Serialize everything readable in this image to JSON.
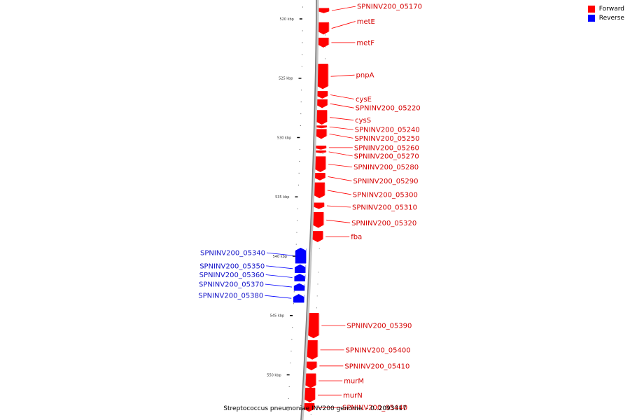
{
  "legend": {
    "forward_label": "Forward",
    "reverse_label": "Reverse",
    "forward_color": "#ff0000",
    "reverse_color": "#0000ff"
  },
  "caption": "Streptococcus pneumoniae INV200 genome. - 0..2093317",
  "chart_data": {
    "type": "genome-map",
    "view_range_kbp": [
      518.5,
      553.5
    ],
    "tick_labels": [
      "520 kbp",
      "525 kbp",
      "530 kbp",
      "535 kbp",
      "540 kbp",
      "545 kbp",
      "550 kbp"
    ],
    "genes": [
      {
        "name": "SPNINV200_05170",
        "strand": "forward",
        "start_kbp": 519.1,
        "end_kbp": 519.5
      },
      {
        "name": "metE",
        "strand": "forward",
        "start_kbp": 520.3,
        "end_kbp": 521.3
      },
      {
        "name": "metF",
        "strand": "forward",
        "start_kbp": 521.6,
        "end_kbp": 522.4
      },
      {
        "name": "pnpA",
        "strand": "forward",
        "start_kbp": 523.8,
        "end_kbp": 525.9
      },
      {
        "name": "cysE",
        "strand": "forward",
        "start_kbp": 526.1,
        "end_kbp": 526.7
      },
      {
        "name": "SPNINV200_05220",
        "strand": "forward",
        "start_kbp": 526.8,
        "end_kbp": 527.5
      },
      {
        "name": "cysS",
        "strand": "forward",
        "start_kbp": 527.7,
        "end_kbp": 528.9
      },
      {
        "name": "SPNINV200_05240",
        "strand": "forward",
        "start_kbp": 529.0,
        "end_kbp": 529.2
      },
      {
        "name": "SPNINV200_05250",
        "strand": "forward",
        "start_kbp": 529.3,
        "end_kbp": 530.1
      },
      {
        "name": "SPNINV200_05260",
        "strand": "forward",
        "start_kbp": 530.7,
        "end_kbp": 531.0
      },
      {
        "name": "SPNINV200_05270",
        "strand": "forward",
        "start_kbp": 531.1,
        "end_kbp": 531.3
      },
      {
        "name": "SPNINV200_05280",
        "strand": "forward",
        "start_kbp": 531.6,
        "end_kbp": 532.9
      },
      {
        "name": "SPNINV200_05290",
        "strand": "forward",
        "start_kbp": 533.0,
        "end_kbp": 533.6
      },
      {
        "name": "SPNINV200_05300",
        "strand": "forward",
        "start_kbp": 533.8,
        "end_kbp": 535.1
      },
      {
        "name": "SPNINV200_05310",
        "strand": "forward",
        "start_kbp": 535.5,
        "end_kbp": 536.0
      },
      {
        "name": "SPNINV200_05320",
        "strand": "forward",
        "start_kbp": 536.3,
        "end_kbp": 537.6
      },
      {
        "name": "fba",
        "strand": "forward",
        "start_kbp": 537.9,
        "end_kbp": 538.8
      },
      {
        "name": "SPNINV200_05340",
        "strand": "reverse",
        "start_kbp": 539.3,
        "end_kbp": 540.6
      },
      {
        "name": "SPNINV200_05350",
        "strand": "reverse",
        "start_kbp": 540.7,
        "end_kbp": 541.4
      },
      {
        "name": "SPNINV200_05360",
        "strand": "reverse",
        "start_kbp": 541.5,
        "end_kbp": 542.1
      },
      {
        "name": "SPNINV200_05370",
        "strand": "reverse",
        "start_kbp": 542.3,
        "end_kbp": 542.9
      },
      {
        "name": "SPNINV200_05380",
        "strand": "reverse",
        "start_kbp": 543.2,
        "end_kbp": 543.9
      },
      {
        "name": "SPNINV200_05390",
        "strand": "forward",
        "start_kbp": 544.8,
        "end_kbp": 546.9
      },
      {
        "name": "SPNINV200_05400",
        "strand": "forward",
        "start_kbp": 547.1,
        "end_kbp": 548.7
      },
      {
        "name": "SPNINV200_05410",
        "strand": "forward",
        "start_kbp": 548.9,
        "end_kbp": 549.6
      },
      {
        "name": "murM",
        "strand": "forward",
        "start_kbp": 549.9,
        "end_kbp": 551.1
      },
      {
        "name": "murN",
        "strand": "forward",
        "start_kbp": 551.1,
        "end_kbp": 552.3
      },
      {
        "name": "SPNINV200_05440",
        "strand": "forward",
        "start_kbp": 552.4,
        "end_kbp": 553.1
      }
    ]
  }
}
